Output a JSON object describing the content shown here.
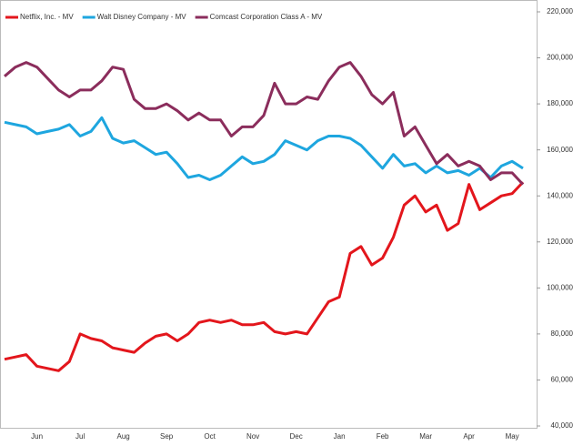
{
  "chart_data": {
    "type": "line",
    "categories": [
      null,
      null,
      null,
      "Jun",
      null,
      null,
      null,
      "Jul",
      null,
      null,
      null,
      "Aug",
      null,
      null,
      null,
      "Sep",
      null,
      null,
      null,
      "Oct",
      null,
      null,
      null,
      "Nov",
      null,
      null,
      null,
      "Dec",
      null,
      null,
      null,
      "Jan",
      null,
      null,
      null,
      "Feb",
      null,
      null,
      null,
      "Mar",
      null,
      null,
      null,
      "Apr",
      null,
      null,
      null,
      "May",
      null
    ],
    "series": [
      {
        "name": "Netflix, Inc. - MV",
        "color": "#e3161c",
        "values": [
          69000,
          70000,
          71000,
          66000,
          65000,
          64000,
          68000,
          80000,
          78000,
          77000,
          74000,
          73000,
          72000,
          76000,
          79000,
          80000,
          77000,
          80000,
          85000,
          86000,
          85000,
          86000,
          84000,
          84000,
          85000,
          81000,
          80000,
          81000,
          80000,
          87000,
          94000,
          96000,
          115000,
          118000,
          110000,
          113000,
          122000,
          136000,
          140000,
          133000,
          136000,
          125000,
          128000,
          145000,
          134000,
          137000,
          140000,
          141000,
          146000
        ]
      },
      {
        "name": "Walt Disney Company - MV",
        "color": "#1ea6df",
        "values": [
          172000,
          171000,
          170000,
          167000,
          168000,
          169000,
          171000,
          166000,
          168000,
          174000,
          165000,
          163000,
          164000,
          161000,
          158000,
          159000,
          154000,
          148000,
          149000,
          147000,
          149000,
          153000,
          157000,
          154000,
          155000,
          158000,
          164000,
          162000,
          160000,
          164000,
          166000,
          166000,
          165000,
          162000,
          157000,
          152000,
          158000,
          153000,
          154000,
          150000,
          153000,
          150000,
          151000,
          149000,
          152000,
          148000,
          153000,
          155000,
          152000
        ]
      },
      {
        "name": "Comcast Corporation Class A - MV",
        "color": "#8b2d5c",
        "values": [
          192000,
          196000,
          198000,
          196000,
          191000,
          186000,
          183000,
          186000,
          186000,
          190000,
          196000,
          195000,
          182000,
          178000,
          178000,
          180000,
          177000,
          173000,
          176000,
          173000,
          173000,
          166000,
          170000,
          170000,
          175000,
          189000,
          180000,
          180000,
          183000,
          182000,
          190000,
          196000,
          198000,
          192000,
          184000,
          180000,
          185000,
          166000,
          170000,
          162000,
          154000,
          158000,
          153000,
          155000,
          153000,
          147000,
          150000,
          150000,
          145000
        ]
      }
    ],
    "ylim": [
      40000,
      220000
    ],
    "yticks": [
      {
        "value": 40000,
        "label": "40,000"
      },
      {
        "value": 60000,
        "label": "60,000"
      },
      {
        "value": 80000,
        "label": "80,000"
      },
      {
        "value": 100000,
        "label": "100,000"
      },
      {
        "value": 120000,
        "label": "120,000"
      },
      {
        "value": 140000,
        "label": "140,000"
      },
      {
        "value": 160000,
        "label": "160,000"
      },
      {
        "value": 180000,
        "label": "180,000"
      },
      {
        "value": 200000,
        "label": "200,000"
      },
      {
        "value": 220000,
        "label": "220,000"
      }
    ],
    "grid": false,
    "legend": "top-left"
  }
}
